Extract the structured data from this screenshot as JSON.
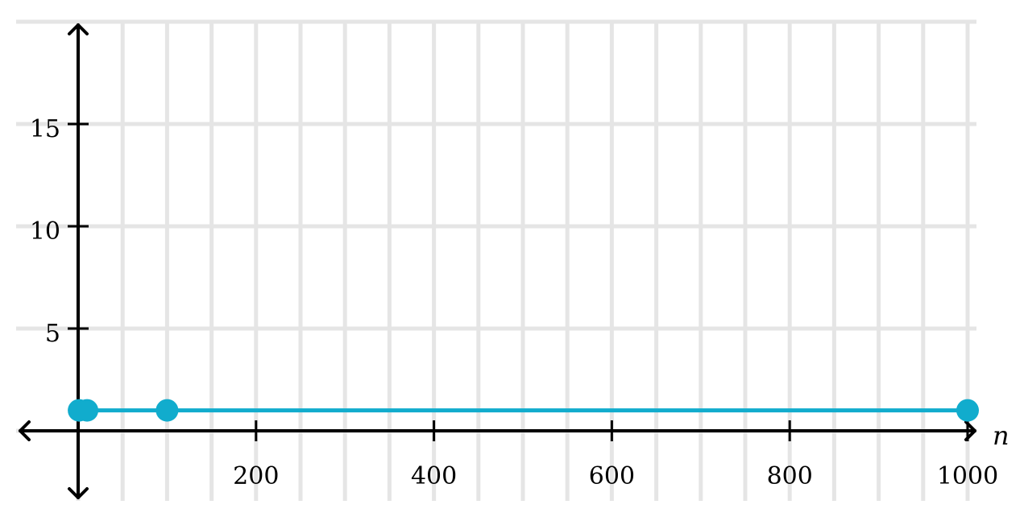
{
  "chart_data": {
    "type": "line",
    "title": "",
    "xlabel": "n",
    "ylabel": "",
    "xlim": [
      -25,
      1000
    ],
    "ylim": [
      -3.4,
      20
    ],
    "grid": true,
    "x_grid_step": 50,
    "y_grid_step": 5,
    "x_ticks": [
      200,
      400,
      600,
      800,
      1000
    ],
    "y_ticks": [
      5,
      10,
      15
    ],
    "x_tick_labels": [
      "200",
      "400",
      "600",
      "800",
      "1000"
    ],
    "y_tick_labels": [
      "5",
      "10",
      "15"
    ],
    "color": "#11accd",
    "series": [
      {
        "x": [
          1,
          10,
          100,
          1000
        ],
        "y": [
          1,
          1,
          1,
          1
        ]
      }
    ]
  }
}
